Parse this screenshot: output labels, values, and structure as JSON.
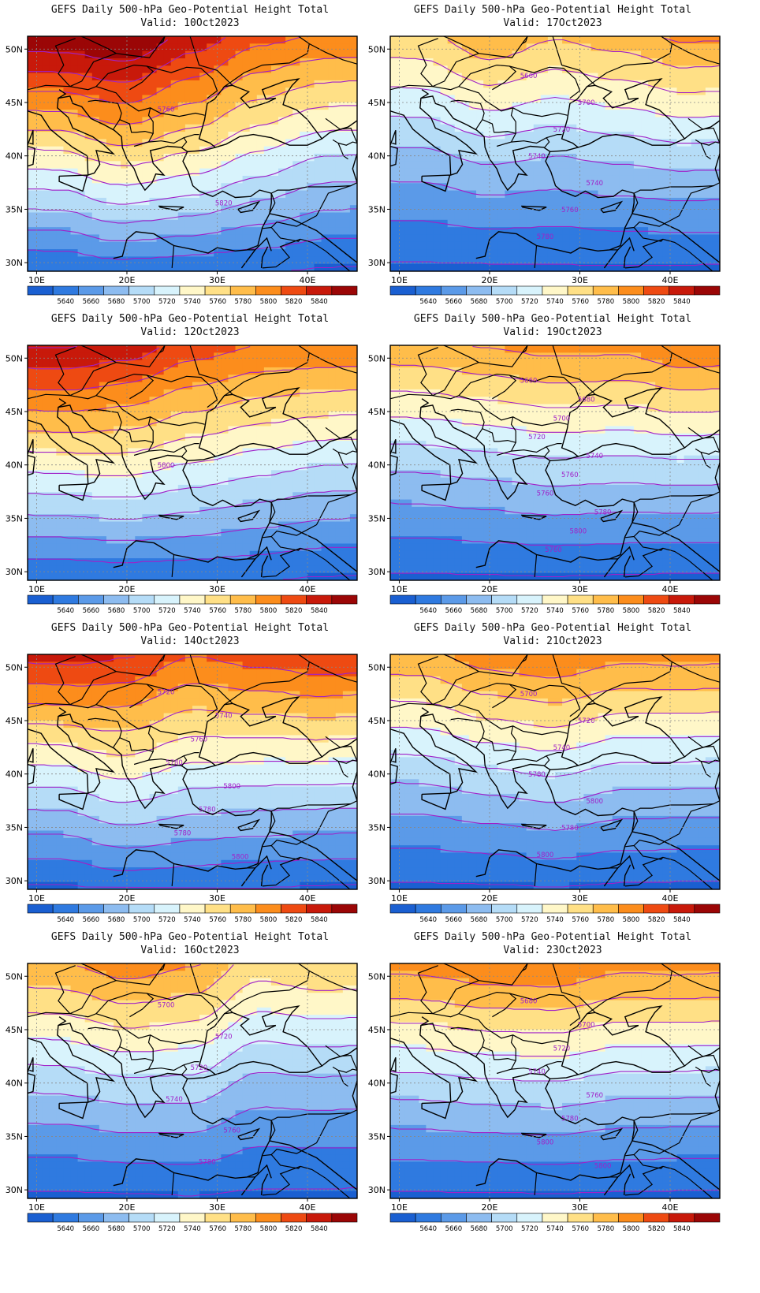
{
  "colors": [
    "#1a5fd1",
    "#2f7ae0",
    "#5b9ae8",
    "#8dbcf0",
    "#b5dcf7",
    "#d8f3fc",
    "#fff7c8",
    "#ffe086",
    "#ffbd4a",
    "#fc8d1c",
    "#ee4a12",
    "#c8190a",
    "#9b0606"
  ],
  "contour_color": "#a020c8",
  "colorbar_labels": [
    "5640",
    "5660",
    "5680",
    "5700",
    "5720",
    "5740",
    "5760",
    "5780",
    "5800",
    "5820",
    "5840"
  ],
  "lon_labels": [
    "10E",
    "20E",
    "30E",
    "40E"
  ],
  "lat_labels": [
    "50N",
    "45N",
    "40N",
    "35N",
    "30N"
  ],
  "panels": [
    {
      "title": "GEFS Daily 500-hPa Geo-Potential Height Total",
      "valid": "Valid:  10Oct2023",
      "contour_labels": [
        "5760",
        "5820"
      ],
      "fields": {
        "k": [
          [
            0.1,
            0.33,
            12.7,
            -2.0
          ],
          [
            0.3,
            0.85,
            13.0,
            -2.0
          ],
          [
            0.5,
            1.0,
            11.5,
            -2.5
          ],
          [
            0.7,
            0.75,
            10.3,
            -2.0
          ],
          [
            0.9,
            0.2,
            10.0,
            -1.5
          ]
        ]
      }
    },
    {
      "title": "GEFS Daily 500-hPa Geo-Potential Height Total",
      "valid": "Valid:  17Oct2023",
      "contour_labels": [
        "5660",
        "5700",
        "5720",
        "5740",
        "5740",
        "5760",
        "5780"
      ],
      "fields": {
        "k": [
          [
            0.1,
            0.04,
            7.8,
            -1.5
          ],
          [
            0.3,
            0.03,
            8.8,
            -1.5
          ],
          [
            0.5,
            0.08,
            8.0,
            -1.5
          ],
          [
            0.7,
            0.13,
            8.5,
            -1.0
          ],
          [
            0.9,
            0.08,
            9.3,
            -1.0
          ]
        ]
      }
    },
    {
      "title": "GEFS Daily 500-hPa Geo-Potential Height Total",
      "valid": "Valid:  12Oct2023",
      "contour_labels": [
        "5800"
      ],
      "fields": {
        "k": [
          [
            0.1,
            0.35,
            12.0,
            -1.2
          ],
          [
            0.3,
            0.55,
            11.5,
            -1.2
          ],
          [
            0.5,
            0.6,
            10.5,
            -1.2
          ],
          [
            0.7,
            0.5,
            10.0,
            -1.5
          ],
          [
            0.9,
            0.2,
            10.0,
            -1.5
          ]
        ]
      }
    },
    {
      "title": "GEFS Daily 500-hPa Geo-Potential Height Total",
      "valid": "Valid:  19Oct2023",
      "contour_labels": [
        "5660",
        "5680",
        "5700",
        "5720",
        "5740",
        "5760",
        "5760",
        "5780",
        "5800",
        "5760"
      ],
      "fields": {
        "k": [
          [
            0.1,
            0.05,
            8.8,
            -1.0
          ],
          [
            0.3,
            0.1,
            9.0,
            -1.0
          ],
          [
            0.5,
            0.15,
            9.3,
            -1.2
          ],
          [
            0.7,
            0.1,
            9.3,
            -1.5
          ],
          [
            0.9,
            0.0,
            10.0,
            -1.5
          ]
        ]
      }
    },
    {
      "title": "GEFS Daily 500-hPa Geo-Potential Height Total",
      "valid": "Valid:  14Oct2023",
      "contour_labels": [
        "5720",
        "5740",
        "5760",
        "5780",
        "5800",
        "5780",
        "5780",
        "5800"
      ],
      "fields": {
        "k": [
          [
            0.1,
            0.05,
            11.5,
            -1.5
          ],
          [
            0.3,
            0.55,
            11.0,
            -1.5
          ],
          [
            0.5,
            0.5,
            10.0,
            -1.5
          ],
          [
            0.7,
            0.3,
            10.5,
            -1.5
          ],
          [
            0.9,
            0.15,
            11.0,
            -1.2
          ]
        ]
      }
    },
    {
      "title": "GEFS Daily 500-hPa Geo-Potential Height Total",
      "valid": "Valid:  21Oct2023",
      "contour_labels": [
        "5700",
        "5720",
        "5740",
        "5780",
        "5800",
        "5780",
        "5800"
      ],
      "fields": {
        "k": [
          [
            0.1,
            0.08,
            8.8,
            -1.0
          ],
          [
            0.3,
            0.1,
            9.5,
            -1.5
          ],
          [
            0.5,
            0.2,
            9.8,
            -1.5
          ],
          [
            0.7,
            0.05,
            9.3,
            -1.2
          ],
          [
            0.9,
            0.0,
            9.5,
            -1.5
          ]
        ]
      }
    },
    {
      "title": "GEFS Daily 500-hPa Geo-Potential Height Total",
      "valid": "Valid:  16Oct2023",
      "contour_labels": [
        "5700",
        "5720",
        "5720",
        "5740",
        "5760",
        "5780"
      ],
      "fields": {
        "k": [
          [
            0.1,
            0.05,
            9.0,
            -1.3
          ],
          [
            0.3,
            0.1,
            9.5,
            -1.3
          ],
          [
            0.5,
            0.2,
            9.0,
            -1.5
          ],
          [
            0.7,
            0.05,
            7.5,
            -1.2
          ],
          [
            0.9,
            0.0,
            8.0,
            -1.3
          ]
        ]
      }
    },
    {
      "title": "GEFS Daily 500-hPa Geo-Potential Height Total",
      "valid": "Valid:  23Oct2023",
      "contour_labels": [
        "5680",
        "5700",
        "5720",
        "5740",
        "5760",
        "5780",
        "5800",
        "5800"
      ],
      "fields": {
        "k": [
          [
            0.1,
            0.05,
            9.5,
            -1.0
          ],
          [
            0.3,
            0.05,
            9.8,
            -1.2
          ],
          [
            0.5,
            0.1,
            9.8,
            -1.2
          ],
          [
            0.7,
            0.05,
            9.3,
            -1.2
          ],
          [
            0.9,
            0.0,
            9.5,
            -1.5
          ]
        ]
      }
    }
  ]
}
